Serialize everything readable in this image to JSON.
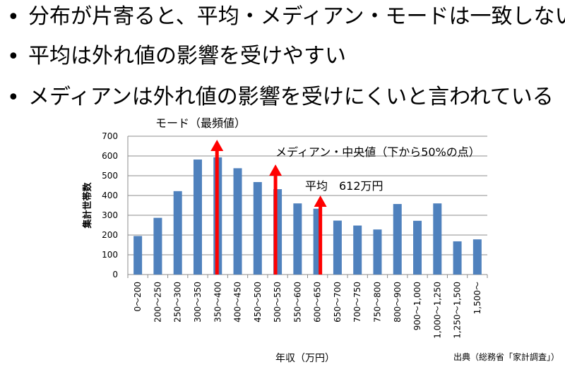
{
  "bullets": [
    "分布が片寄ると、平均・メディアン・モードは一致しない",
    "平均は外れ値の影響を受けやすい",
    "メディアンは外れ値の影響を受けにくいと言われている"
  ],
  "bullet_marker": "•",
  "chart_data": {
    "type": "bar",
    "categories": [
      "0～200",
      "200～250",
      "250～300",
      "300～350",
      "350～400",
      "400～450",
      "450～500",
      "500～550",
      "550～600",
      "600～650",
      "650～700",
      "700～750",
      "750～800",
      "800～900",
      "900～1,000",
      "1,000～1,250",
      "1,250～1,500",
      "1,500～"
    ],
    "values": [
      195,
      287,
      422,
      582,
      593,
      538,
      468,
      432,
      360,
      333,
      273,
      248,
      228,
      357,
      272,
      360,
      168,
      178
    ],
    "xlabel": "年収（万円）",
    "ylabel": "集計世帯数",
    "ylim": [
      0,
      700
    ],
    "yticks": [
      0,
      100,
      200,
      300,
      400,
      500,
      600,
      700
    ],
    "grid": true,
    "bar_color": "#4f81bd",
    "annotations": [
      {
        "label": "モード（最頻値）",
        "category": "350～400",
        "color": "#ff0000"
      },
      {
        "label": "メディアン・中央値（下から50%の点）",
        "category": "500～550",
        "color": "#ff0000"
      },
      {
        "label": "平均　612万円",
        "category": "600～650",
        "color": "#ff0000"
      }
    ]
  },
  "source": "出典（総務省「家計調査」）"
}
